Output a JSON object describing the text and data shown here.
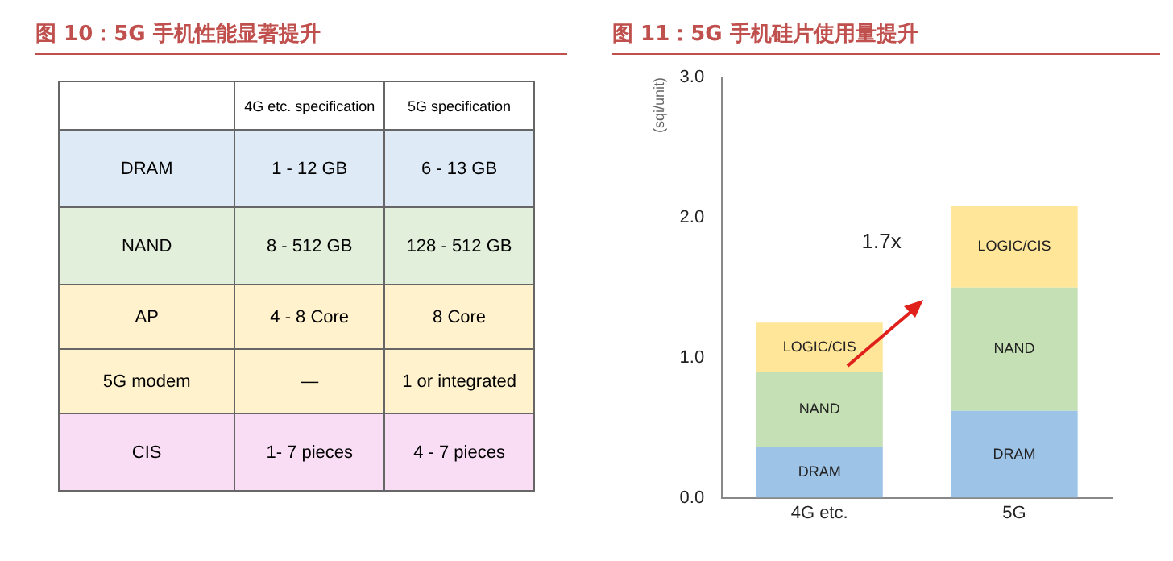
{
  "chart_data": [
    {
      "type": "other",
      "title": "图 10：5G 手机性能显著提升",
      "categories": [
        "4G etc. specification",
        "5G specification"
      ],
      "y_categories": [
        "DRAM",
        "NAND",
        "AP",
        "5G modem",
        "CIS"
      ],
      "colors": [
        "#deebf7",
        "#e2efda",
        "#fff2cc",
        "#fff2cc",
        "#f8ddf5"
      ],
      "cell_labels": [
        [
          "1 - 12 GB",
          "6 - 13 GB"
        ],
        [
          "8 - 512 GB",
          "128 - 512 GB"
        ],
        [
          "4 - 8 Core",
          "8 Core"
        ],
        [
          "—",
          "1 or integrated"
        ],
        [
          "1- 7 pieces",
          "4 - 7 pieces"
        ]
      ]
    },
    {
      "type": "bar",
      "title": "图 11：5G 手机硅片使用量提升",
      "ylabel": "(sqi/unit)",
      "stacked": true,
      "categories": [
        "4G etc.",
        "5G"
      ],
      "ylim": [
        0,
        3
      ],
      "yticks": [
        {
          "value": 0,
          "label": "0.0"
        },
        {
          "value": 1,
          "label": "1.0"
        },
        {
          "value": 2,
          "label": "2.0"
        },
        {
          "value": 3,
          "label": "3.0"
        }
      ],
      "grid": false,
      "legend": false,
      "annotations": [
        "1.7x"
      ],
      "series": [
        {
          "name": "DRAM",
          "color": "#9dc3e6",
          "values": [
            0.36,
            0.62
          ]
        },
        {
          "name": "NAND",
          "color": "#c5e0b4",
          "values": [
            0.54,
            0.88
          ]
        },
        {
          "name": "LOGIC/CIS",
          "color": "#ffe699",
          "values": [
            0.35,
            0.58
          ]
        }
      ]
    }
  ]
}
